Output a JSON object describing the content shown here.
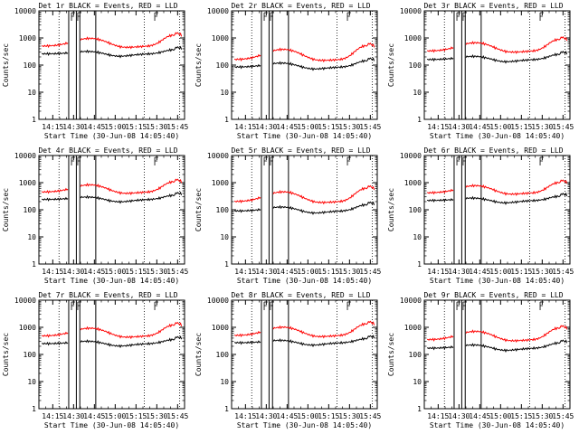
{
  "chart_data": [
    {
      "type": "line",
      "title": "Det 1r  BLACK = Events, RED = LLD",
      "xlabel": "Start Time (30-Jun-08 14:05:40)",
      "ylabel": "Counts/sec",
      "yscale": "log",
      "ylim": [
        1,
        10000
      ],
      "xlim": [
        "14:05",
        "15:50"
      ],
      "xticks": [
        "14:15",
        "14:30",
        "14:45",
        "15:00",
        "15:15",
        "15:30",
        "15:45"
      ],
      "yticks": [
        "1",
        "10",
        "100",
        "1000",
        "10000"
      ],
      "series": [
        {
          "name": "LLD",
          "color": "#ff0000",
          "base": 500,
          "amp": 2.1
        },
        {
          "name": "Events",
          "color": "#000000",
          "base": 260,
          "amp": 1.3
        }
      ]
    },
    {
      "type": "line",
      "title": "Det 2r  BLACK = Events, RED = LLD",
      "xlabel": "Start Time (30-Jun-08 14:05:40)",
      "ylabel": "Counts/sec",
      "yscale": "log",
      "ylim": [
        1,
        10000
      ],
      "xlim": [
        "14:05",
        "15:50"
      ],
      "xticks": [
        "14:15",
        "14:30",
        "14:45",
        "15:00",
        "15:15",
        "15:30",
        "15:45"
      ],
      "yticks": [
        "1",
        "10",
        "100",
        "1000",
        "10000"
      ],
      "series": [
        {
          "name": "LLD",
          "color": "#ff0000",
          "base": 160,
          "amp": 2.6
        },
        {
          "name": "Events",
          "color": "#000000",
          "base": 85,
          "amp": 1.5
        }
      ]
    },
    {
      "type": "line",
      "title": "Det 3r  BLACK = Events, RED = LLD",
      "xlabel": "Start Time (30-Jun-08 14:05:40)",
      "ylabel": "Counts/sec",
      "yscale": "log",
      "ylim": [
        1,
        10000
      ],
      "xlim": [
        "14:05",
        "15:50"
      ],
      "xticks": [
        "14:15",
        "14:30",
        "14:45",
        "15:00",
        "15:15",
        "15:30",
        "15:45"
      ],
      "yticks": [
        "1",
        "10",
        "100",
        "1000",
        "10000"
      ],
      "series": [
        {
          "name": "LLD",
          "color": "#ff0000",
          "base": 330,
          "amp": 2.2
        },
        {
          "name": "Events",
          "color": "#000000",
          "base": 160,
          "amp": 1.4
        }
      ]
    },
    {
      "type": "line",
      "title": "Det 4r  BLACK = Events, RED = LLD",
      "xlabel": "Start Time (30-Jun-08 14:05:40)",
      "ylabel": "Counts/sec",
      "yscale": "log",
      "ylim": [
        1,
        10000
      ],
      "xlim": [
        "14:05",
        "15:50"
      ],
      "xticks": [
        "14:15",
        "14:30",
        "14:45",
        "15:00",
        "15:15",
        "15:30",
        "15:45"
      ],
      "yticks": [
        "1",
        "10",
        "100",
        "1000",
        "10000"
      ],
      "series": [
        {
          "name": "LLD",
          "color": "#ff0000",
          "base": 450,
          "amp": 2.0
        },
        {
          "name": "Events",
          "color": "#000000",
          "base": 240,
          "amp": 1.3
        }
      ]
    },
    {
      "type": "line",
      "title": "Det 5r  BLACK = Events, RED = LLD",
      "xlabel": "Start Time (30-Jun-08 14:05:40)",
      "ylabel": "Counts/sec",
      "yscale": "log",
      "ylim": [
        1,
        10000
      ],
      "xlim": [
        "14:05",
        "15:50"
      ],
      "xticks": [
        "14:15",
        "14:30",
        "14:45",
        "15:00",
        "15:15",
        "15:30",
        "15:45"
      ],
      "yticks": [
        "1",
        "10",
        "100",
        "1000",
        "10000"
      ],
      "series": [
        {
          "name": "LLD",
          "color": "#ff0000",
          "base": 200,
          "amp": 2.5
        },
        {
          "name": "Events",
          "color": "#000000",
          "base": 90,
          "amp": 1.5
        }
      ]
    },
    {
      "type": "line",
      "title": "Det 6r  BLACK = Events, RED = LLD",
      "xlabel": "Start Time (30-Jun-08 14:05:40)",
      "ylabel": "Counts/sec",
      "yscale": "log",
      "ylim": [
        1,
        10000
      ],
      "xlim": [
        "14:05",
        "15:50"
      ],
      "xticks": [
        "14:15",
        "14:30",
        "14:45",
        "15:00",
        "15:15",
        "15:30",
        "15:45"
      ],
      "yticks": [
        "1",
        "10",
        "100",
        "1000",
        "10000"
      ],
      "series": [
        {
          "name": "LLD",
          "color": "#ff0000",
          "base": 420,
          "amp": 2.0
        },
        {
          "name": "Events",
          "color": "#000000",
          "base": 220,
          "amp": 1.3
        }
      ]
    },
    {
      "type": "line",
      "title": "Det 7r  BLACK = Events, RED = LLD",
      "xlabel": "Start Time (30-Jun-08 14:05:40)",
      "ylabel": "Counts/sec",
      "yscale": "log",
      "ylim": [
        1,
        10000
      ],
      "xlim": [
        "14:05",
        "15:50"
      ],
      "xticks": [
        "14:15",
        "14:30",
        "14:45",
        "15:00",
        "15:15",
        "15:30",
        "15:45"
      ],
      "yticks": [
        "1",
        "10",
        "100",
        "1000",
        "10000"
      ],
      "series": [
        {
          "name": "LLD",
          "color": "#ff0000",
          "base": 480,
          "amp": 2.1
        },
        {
          "name": "Events",
          "color": "#000000",
          "base": 250,
          "amp": 1.3
        }
      ]
    },
    {
      "type": "line",
      "title": "Det 8r  BLACK = Events, RED = LLD",
      "xlabel": "Start Time (30-Jun-08 14:05:40)",
      "ylabel": "Counts/sec",
      "yscale": "log",
      "ylim": [
        1,
        10000
      ],
      "xlim": [
        "14:05",
        "15:50"
      ],
      "xticks": [
        "14:15",
        "14:30",
        "14:45",
        "15:00",
        "15:15",
        "15:30",
        "15:45"
      ],
      "yticks": [
        "1",
        "10",
        "100",
        "1000",
        "10000"
      ],
      "series": [
        {
          "name": "LLD",
          "color": "#ff0000",
          "base": 500,
          "amp": 2.2
        },
        {
          "name": "Events",
          "color": "#000000",
          "base": 270,
          "amp": 1.3
        }
      ]
    },
    {
      "type": "line",
      "title": "Det 9r  BLACK = Events, RED = LLD",
      "xlabel": "Start Time (30-Jun-08 14:05:40)",
      "ylabel": "Counts/sec",
      "yscale": "log",
      "ylim": [
        1,
        10000
      ],
      "xlim": [
        "14:05",
        "15:50"
      ],
      "xticks": [
        "14:15",
        "14:30",
        "14:45",
        "15:00",
        "15:15",
        "15:30",
        "15:45"
      ],
      "yticks": [
        "1",
        "10",
        "100",
        "1000",
        "10000"
      ],
      "series": [
        {
          "name": "LLD",
          "color": "#ff0000",
          "base": 350,
          "amp": 2.2
        },
        {
          "name": "Events",
          "color": "#000000",
          "base": 170,
          "amp": 1.4
        }
      ]
    }
  ]
}
